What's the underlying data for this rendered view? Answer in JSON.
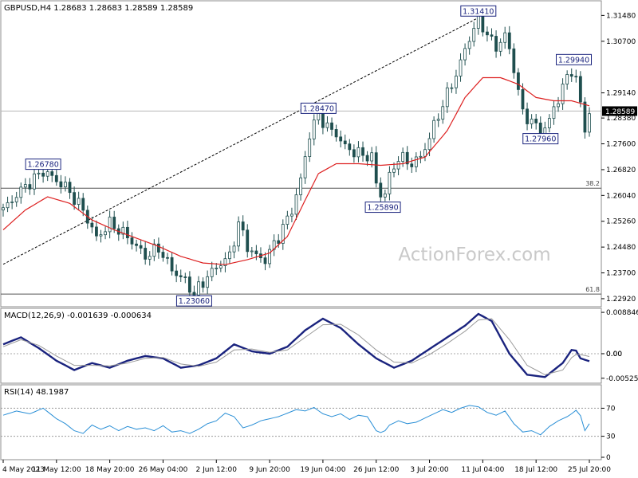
{
  "chart_data": [
    {
      "type": "candlestick",
      "pane": "price",
      "title": "GBPUSD,H4  1.28683 1.28683 1.28589 1.28589",
      "symbol": "GBPUSD",
      "timeframe": "H4",
      "ohlc_readout": "1.28683 1.28683 1.28589 1.28589",
      "ylim": [
        1.2275,
        1.3185
      ],
      "y_ticks": [
        "1.31480",
        "1.30700",
        "1.29140",
        "1.28380",
        "1.27600",
        "1.26820",
        "1.26040",
        "1.25260",
        "1.24480",
        "1.23700",
        "1.22920"
      ],
      "last_price_label": "1.28589",
      "x_ticks": [
        "4 May 2023",
        "11 May 12:00",
        "18 May 20:00",
        "26 May 04:00",
        "2 Jun 12:00",
        "9 Jun 20:00",
        "19 Jun 04:00",
        "26 Jun 12:00",
        "3 Jul 20:00",
        "11 Jul 04:00",
        "18 Jul 12:00",
        "25 Jul 20:00"
      ],
      "close_path": [
        [
          0,
          1.256
        ],
        [
          4,
          1.262
        ],
        [
          9,
          1.2678
        ],
        [
          14,
          1.263
        ],
        [
          18,
          1.256
        ],
        [
          21,
          1.2475
        ],
        [
          24,
          1.252
        ],
        [
          28,
          1.248
        ],
        [
          32,
          1.242
        ],
        [
          35,
          1.2445
        ],
        [
          38,
          1.238
        ],
        [
          41,
          1.2345
        ],
        [
          43,
          1.2306
        ],
        [
          46,
          1.236
        ],
        [
          49,
          1.24
        ],
        [
          51,
          1.242
        ],
        [
          53,
          1.252
        ],
        [
          55,
          1.245
        ],
        [
          57,
          1.242
        ],
        [
          59,
          1.241
        ],
        [
          62,
          1.248
        ],
        [
          65,
          1.256
        ],
        [
          67,
          1.265
        ],
        [
          69,
          1.279
        ],
        [
          71,
          1.2847
        ],
        [
          73,
          1.281
        ],
        [
          75,
          1.279
        ],
        [
          77,
          1.275
        ],
        [
          80,
          1.273
        ],
        [
          83,
          1.272
        ],
        [
          84,
          1.264
        ],
        [
          85.5,
          1.2589
        ],
        [
          87,
          1.266
        ],
        [
          89,
          1.272
        ],
        [
          92,
          1.27
        ],
        [
          94,
          1.272
        ],
        [
          96,
          1.278
        ],
        [
          99,
          1.288
        ],
        [
          102,
          1.297
        ],
        [
          105,
          1.308
        ],
        [
          107,
          1.3141
        ],
        [
          109,
          1.309
        ],
        [
          111,
          1.305
        ],
        [
          113,
          1.309
        ],
        [
          115,
          1.299
        ],
        [
          117,
          1.285
        ],
        [
          119,
          1.283
        ],
        [
          121,
          1.2796
        ],
        [
          123,
          1.283
        ],
        [
          125,
          1.29
        ],
        [
          127,
          1.296
        ],
        [
          128.5,
          1.2994
        ],
        [
          130,
          1.288
        ],
        [
          131,
          1.28
        ],
        [
          132,
          1.2859
        ]
      ],
      "ma_path": [
        [
          0,
          1.25
        ],
        [
          5,
          1.256
        ],
        [
          10,
          1.26
        ],
        [
          15,
          1.258
        ],
        [
          20,
          1.253
        ],
        [
          25,
          1.25
        ],
        [
          30,
          1.2475
        ],
        [
          35,
          1.245
        ],
        [
          40,
          1.242
        ],
        [
          45,
          1.24
        ],
        [
          50,
          1.2395
        ],
        [
          55,
          1.241
        ],
        [
          60,
          1.243
        ],
        [
          64,
          1.248
        ],
        [
          68,
          1.259
        ],
        [
          71,
          1.267
        ],
        [
          75,
          1.27
        ],
        [
          80,
          1.27
        ],
        [
          85,
          1.2695
        ],
        [
          90,
          1.27
        ],
        [
          95,
          1.272
        ],
        [
          100,
          1.28
        ],
        [
          104,
          1.29
        ],
        [
          108,
          1.296
        ],
        [
          112,
          1.296
        ],
        [
          116,
          1.294
        ],
        [
          120,
          1.29
        ],
        [
          124,
          1.289
        ],
        [
          128,
          1.289
        ],
        [
          132,
          1.2875
        ]
      ],
      "annotations": [
        {
          "label": "1.26780",
          "x": 9,
          "price": 1.2678,
          "side": "above"
        },
        {
          "label": "1.23060",
          "x": 43,
          "price": 1.2306,
          "side": "below"
        },
        {
          "label": "1.28470",
          "x": 71,
          "price": 1.2847,
          "side": "above"
        },
        {
          "label": "1.25890",
          "x": 85.5,
          "price": 1.2589,
          "side": "below"
        },
        {
          "label": "1.31410",
          "x": 107,
          "price": 1.3141,
          "side": "above"
        },
        {
          "label": "1.29940",
          "x": 128.5,
          "price": 1.2994,
          "side": "above"
        },
        {
          "label": "1.27960",
          "x": 121,
          "price": 1.2796,
          "side": "below"
        }
      ],
      "fib_levels": [
        {
          "label": "38.2",
          "price": 1.2626
        },
        {
          "label": "61.8",
          "price": 1.2306
        }
      ],
      "trendline": {
        "from": [
          0,
          1.2396
        ],
        "to": [
          107,
          1.3141
        ],
        "style": "dashed"
      },
      "price_hline": 1.2859,
      "watermark": "ActionForex.com",
      "colors": {
        "candle": "#1f4f4f",
        "ma": "#dd2020",
        "grid": "#b8b8b8",
        "trendline": "#000000"
      }
    },
    {
      "type": "line",
      "pane": "macd",
      "title": "MACD(12,26,9) -0.001639 -0.000634",
      "ylim": [
        -0.0058,
        0.0092
      ],
      "y_ticks": [
        "0.008846",
        "0.00",
        "-0.005252"
      ],
      "zero_label": "0.00",
      "series": [
        {
          "name": "MACD",
          "color": "#1a237e",
          "points": [
            [
              0,
              0.002
            ],
            [
              4,
              0.0035
            ],
            [
              8,
              0.0012
            ],
            [
              12,
              -0.0015
            ],
            [
              16,
              -0.0035
            ],
            [
              20,
              -0.002
            ],
            [
              24,
              -0.003
            ],
            [
              28,
              -0.0015
            ],
            [
              32,
              -0.0005
            ],
            [
              36,
              -0.001
            ],
            [
              40,
              -0.003
            ],
            [
              44,
              -0.0025
            ],
            [
              48,
              -0.001
            ],
            [
              52,
              0.002
            ],
            [
              56,
              0.0005
            ],
            [
              60,
              0.0
            ],
            [
              64,
              0.0015
            ],
            [
              68,
              0.005
            ],
            [
              72,
              0.0075
            ],
            [
              76,
              0.0055
            ],
            [
              80,
              0.002
            ],
            [
              84,
              -0.001
            ],
            [
              88,
              -0.003
            ],
            [
              92,
              -0.0015
            ],
            [
              96,
              0.001
            ],
            [
              100,
              0.0035
            ],
            [
              104,
              0.006
            ],
            [
              107,
              0.0085
            ],
            [
              110,
              0.007
            ],
            [
              114,
              0.0
            ],
            [
              118,
              -0.0045
            ],
            [
              122,
              -0.005
            ],
            [
              126,
              -0.002
            ],
            [
              128.5,
              0.0015
            ],
            [
              130,
              -0.001
            ],
            [
              132,
              -0.0016
            ]
          ]
        },
        {
          "name": "Signal",
          "color": "#9a9a9a",
          "points": [
            [
              0,
              0.0015
            ],
            [
              4,
              0.003
            ],
            [
              8,
              0.0018
            ],
            [
              12,
              -0.0005
            ],
            [
              16,
              -0.0025
            ],
            [
              20,
              -0.0025
            ],
            [
              24,
              -0.0026
            ],
            [
              28,
              -0.002
            ],
            [
              32,
              -0.001
            ],
            [
              36,
              -0.0008
            ],
            [
              40,
              -0.0022
            ],
            [
              44,
              -0.0027
            ],
            [
              48,
              -0.0018
            ],
            [
              52,
              0.0008
            ],
            [
              56,
              0.001
            ],
            [
              60,
              0.0003
            ],
            [
              64,
              0.0008
            ],
            [
              68,
              0.0035
            ],
            [
              72,
              0.0062
            ],
            [
              76,
              0.0063
            ],
            [
              80,
              0.004
            ],
            [
              84,
              0.0008
            ],
            [
              88,
              -0.0018
            ],
            [
              92,
              -0.002
            ],
            [
              96,
              -0.0002
            ],
            [
              100,
              0.0022
            ],
            [
              104,
              0.0048
            ],
            [
              107,
              0.0072
            ],
            [
              110,
              0.0075
            ],
            [
              114,
              0.003
            ],
            [
              118,
              -0.0025
            ],
            [
              122,
              -0.0045
            ],
            [
              126,
              -0.0035
            ],
            [
              128.5,
              -0.0002
            ],
            [
              130,
              -0.0002
            ],
            [
              132,
              -0.0006
            ]
          ]
        }
      ]
    },
    {
      "type": "line",
      "pane": "rsi",
      "title": "RSI(14) 48.1987",
      "ylim": [
        0,
        100
      ],
      "y_ticks": [
        "70",
        "30",
        "0"
      ],
      "levels": [
        70,
        30
      ],
      "series": [
        {
          "name": "RSI",
          "color": "#2a8fd6",
          "points": [
            [
              0,
              60
            ],
            [
              3,
              66
            ],
            [
              6,
              62
            ],
            [
              9,
              70
            ],
            [
              12,
              55
            ],
            [
              14,
              48
            ],
            [
              16,
              38
            ],
            [
              18,
              34
            ],
            [
              20,
              46
            ],
            [
              22,
              40
            ],
            [
              24,
              45
            ],
            [
              26,
              38
            ],
            [
              28,
              44
            ],
            [
              30,
              40
            ],
            [
              32,
              42
            ],
            [
              34,
              38
            ],
            [
              36,
              45
            ],
            [
              38,
              36
            ],
            [
              40,
              38
            ],
            [
              42,
              34
            ],
            [
              44,
              40
            ],
            [
              46,
              48
            ],
            [
              48,
              52
            ],
            [
              50,
              63
            ],
            [
              52,
              58
            ],
            [
              54,
              42
            ],
            [
              56,
              46
            ],
            [
              58,
              52
            ],
            [
              60,
              55
            ],
            [
              62,
              58
            ],
            [
              64,
              63
            ],
            [
              66,
              68
            ],
            [
              68,
              66
            ],
            [
              70,
              71
            ],
            [
              72,
              62
            ],
            [
              74,
              58
            ],
            [
              76,
              62
            ],
            [
              78,
              54
            ],
            [
              80,
              60
            ],
            [
              82,
              58
            ],
            [
              84,
              38
            ],
            [
              85.5,
              34
            ],
            [
              87,
              46
            ],
            [
              89,
              52
            ],
            [
              91,
              48
            ],
            [
              93,
              50
            ],
            [
              95,
              56
            ],
            [
              97,
              62
            ],
            [
              99,
              68
            ],
            [
              101,
              64
            ],
            [
              103,
              70
            ],
            [
              105,
              74
            ],
            [
              107,
              72
            ],
            [
              109,
              64
            ],
            [
              111,
              60
            ],
            [
              113,
              66
            ],
            [
              115,
              48
            ],
            [
              117,
              36
            ],
            [
              119,
              38
            ],
            [
              121,
              32
            ],
            [
              123,
              44
            ],
            [
              125,
              52
            ],
            [
              127,
              58
            ],
            [
              128.5,
              64
            ],
            [
              129.5,
              70
            ],
            [
              131,
              38
            ],
            [
              132,
              48
            ]
          ]
        }
      ]
    }
  ]
}
